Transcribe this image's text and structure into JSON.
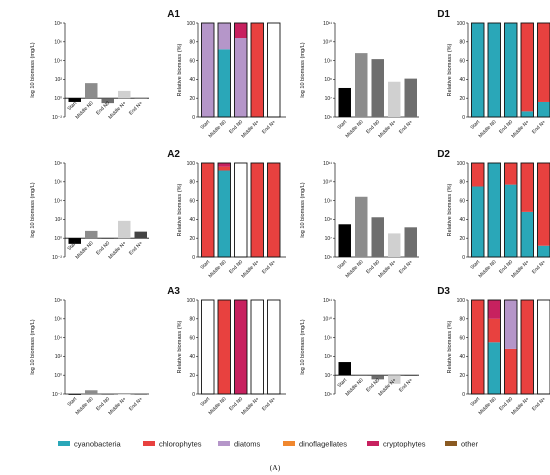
{
  "figure": {
    "caption": "(A)",
    "categories": [
      "Start",
      "Middle N0",
      "End N0",
      "Middle N+",
      "End N+"
    ]
  },
  "colors": {
    "cyanobacteria": "#2aa7b8",
    "chlorophytes": "#e8413f",
    "diatoms": "#b596c9",
    "dinoflagellates": "#f0872e",
    "cryptophytes": "#c7215f",
    "other": "#8a5a22"
  },
  "legend": [
    {
      "key": "cyanobacteria",
      "label": "cyanobacteria"
    },
    {
      "key": "chlorophytes",
      "label": "chlorophytes"
    },
    {
      "key": "diatoms",
      "label": "diatoms"
    },
    {
      "key": "dinoflagellates",
      "label": "dinoflagellates"
    },
    {
      "key": "cryptophytes",
      "label": "cryptophytes"
    },
    {
      "key": "other",
      "label": "other"
    }
  ],
  "chart_data": [
    {
      "panel": "A1",
      "type": "bar",
      "ylabel": "log 10 biomass (mg/L)",
      "baseline": 1,
      "ylim": [
        0.01,
        100000000
      ],
      "ticks": [
        "10⁻²",
        "10⁰",
        "10²",
        "10⁴",
        "10⁶",
        "10⁸"
      ],
      "bar_colors": [
        "#000000",
        "#8c8c8c",
        "#6e6e6e",
        "#d0d0d0",
        "#9e9e9e"
      ],
      "values": [
        0.4,
        40,
        0.3,
        6,
        1
      ],
      "relative": {
        "ylabel": "Relative biomass (%)",
        "ticks": [
          "0",
          "20",
          "40",
          "60",
          "80",
          "100"
        ],
        "stacks": [
          [
            {
              "taxon": "diatoms",
              "value": 100
            }
          ],
          [
            {
              "taxon": "cyanobacteria",
              "value": 72
            },
            {
              "taxon": "diatoms",
              "value": 28
            }
          ],
          [
            {
              "taxon": "diatoms",
              "value": 84
            },
            {
              "taxon": "cryptophytes",
              "value": 16
            }
          ],
          [
            {
              "taxon": "chlorophytes",
              "value": 100
            }
          ],
          []
        ]
      }
    },
    {
      "panel": "D1",
      "type": "bar",
      "ylabel": "log 10 biomass (mg/L)",
      "baseline": 1000000,
      "ylim": [
        1000000,
        100000000000
      ],
      "ticks": [
        "10⁶",
        "10⁷",
        "10⁸",
        "10⁹",
        "10¹⁰",
        "10¹¹"
      ],
      "bar_colors": [
        "#000000",
        "#8c8c8c",
        "#6e6e6e",
        "#d0d0d0",
        "#6e6e6e"
      ],
      "values": [
        35000000,
        2500000000,
        1200000000,
        75000000,
        110000000
      ],
      "relative": {
        "ylabel": "Relative biomass (%)",
        "ticks": [
          "0",
          "20",
          "40",
          "60",
          "80",
          "100"
        ],
        "stacks": [
          [
            {
              "taxon": "cyanobacteria",
              "value": 100
            }
          ],
          [
            {
              "taxon": "cyanobacteria",
              "value": 100
            }
          ],
          [
            {
              "taxon": "cyanobacteria",
              "value": 100
            }
          ],
          [
            {
              "taxon": "cyanobacteria",
              "value": 6
            },
            {
              "taxon": "chlorophytes",
              "value": 94
            }
          ],
          [
            {
              "taxon": "cyanobacteria",
              "value": 16
            },
            {
              "taxon": "chlorophytes",
              "value": 84
            }
          ]
        ]
      }
    },
    {
      "panel": "A2",
      "type": "bar",
      "ylabel": "log 10 biomass (mg/L)",
      "baseline": 1,
      "ylim": [
        0.01,
        100000000
      ],
      "ticks": [
        "10⁻²",
        "10⁰",
        "10²",
        "10⁴",
        "10⁶",
        "10⁸"
      ],
      "bar_colors": [
        "#000000",
        "#8c8c8c",
        "#6e6e6e",
        "#d0d0d0",
        "#444444"
      ],
      "values": [
        0.25,
        6,
        1,
        70,
        5
      ],
      "relative": {
        "ylabel": "Relative biomass (%)",
        "ticks": [
          "0",
          "20",
          "40",
          "60",
          "80",
          "100"
        ],
        "stacks": [
          [
            {
              "taxon": "chlorophytes",
              "value": 100
            }
          ],
          [
            {
              "taxon": "cyanobacteria",
              "value": 92
            },
            {
              "taxon": "chlorophytes",
              "value": 4
            },
            {
              "taxon": "cryptophytes",
              "value": 4
            }
          ],
          [],
          [
            {
              "taxon": "chlorophytes",
              "value": 100
            }
          ],
          [
            {
              "taxon": "chlorophytes",
              "value": 100
            }
          ]
        ]
      }
    },
    {
      "panel": "D2",
      "type": "bar",
      "ylabel": "log 10 biomass (mg/L)",
      "baseline": 1000000,
      "ylim": [
        1000000,
        100000000000
      ],
      "ticks": [
        "10⁶",
        "10⁷",
        "10⁸",
        "10⁹",
        "10¹⁰",
        "10¹¹"
      ],
      "bar_colors": [
        "#000000",
        "#8c8c8c",
        "#6e6e6e",
        "#d0d0d0",
        "#6e6e6e"
      ],
      "values": [
        55000000,
        1600000000,
        130000000,
        18000000,
        38000000
      ],
      "relative": {
        "ylabel": "Relative biomass (%)",
        "ticks": [
          "0",
          "20",
          "40",
          "60",
          "80",
          "100"
        ],
        "stacks": [
          [
            {
              "taxon": "cyanobacteria",
              "value": 75
            },
            {
              "taxon": "chlorophytes",
              "value": 25
            }
          ],
          [
            {
              "taxon": "cyanobacteria",
              "value": 100
            }
          ],
          [
            {
              "taxon": "cyanobacteria",
              "value": 77
            },
            {
              "taxon": "chlorophytes",
              "value": 23
            }
          ],
          [
            {
              "taxon": "cyanobacteria",
              "value": 48
            },
            {
              "taxon": "chlorophytes",
              "value": 52
            }
          ],
          [
            {
              "taxon": "cyanobacteria",
              "value": 12
            },
            {
              "taxon": "chlorophytes",
              "value": 88
            }
          ]
        ]
      }
    },
    {
      "panel": "A3",
      "type": "bar",
      "ylabel": "log 10 biomass (mg/L)",
      "baseline": 0.01,
      "ylim": [
        0.01,
        100000000
      ],
      "ticks": [
        "10⁻²",
        "10⁰",
        "10²",
        "10⁴",
        "10⁶",
        "10⁸"
      ],
      "bar_colors": [
        "#000000",
        "#8c8c8c",
        "#6e6e6e",
        "#d0d0d0",
        "#6e6e6e"
      ],
      "values": [
        0.01,
        0.025,
        0.01,
        0.01,
        0.01
      ],
      "relative": {
        "ylabel": "Relative biomass (%)",
        "ticks": [
          "0",
          "20",
          "40",
          "60",
          "80",
          "100"
        ],
        "stacks": [
          [],
          [
            {
              "taxon": "chlorophytes",
              "value": 100
            }
          ],
          [
            {
              "taxon": "cryptophytes",
              "value": 100
            }
          ],
          [],
          []
        ]
      }
    },
    {
      "panel": "D3",
      "type": "bar",
      "ylabel": "log 10 biomass (mg/L)",
      "baseline": 10000000,
      "ylim": [
        1000000,
        100000000000
      ],
      "ticks": [
        "10⁶",
        "10⁷",
        "10⁸",
        "10⁹",
        "10¹⁰",
        "10¹¹"
      ],
      "bar_colors": [
        "#000000",
        "#8c8c8c",
        "#6e6e6e",
        "#d0d0d0",
        "#6e6e6e"
      ],
      "values": [
        50000000,
        10000000,
        6000000,
        3500000,
        10000000
      ],
      "relative": {
        "ylabel": "Relative biomass (%)",
        "ticks": [
          "0",
          "20",
          "40",
          "60",
          "80",
          "100"
        ],
        "stacks": [
          [
            {
              "taxon": "chlorophytes",
              "value": 100
            }
          ],
          [
            {
              "taxon": "cyanobacteria",
              "value": 55
            },
            {
              "taxon": "chlorophytes",
              "value": 25
            },
            {
              "taxon": "cryptophytes",
              "value": 20
            }
          ],
          [
            {
              "taxon": "chlorophytes",
              "value": 48
            },
            {
              "taxon": "diatoms",
              "value": 52
            }
          ],
          [
            {
              "taxon": "chlorophytes",
              "value": 100
            }
          ],
          []
        ]
      }
    }
  ]
}
